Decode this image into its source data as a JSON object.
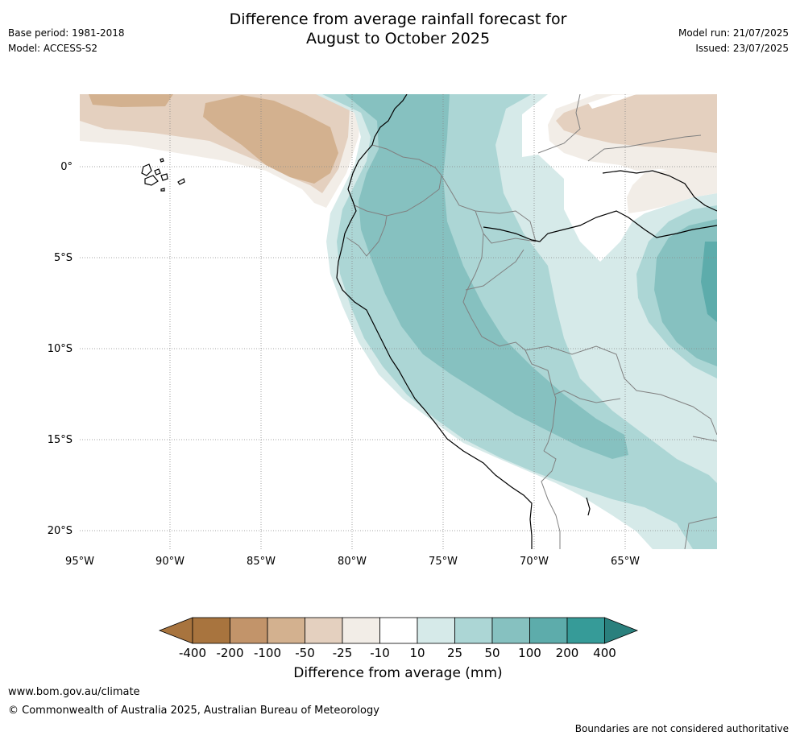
{
  "title_line1": "Difference from average rainfall forecast for",
  "title_line2": "August to October 2025",
  "meta_left": [
    "Base period: 1981-2018",
    "Model: ACCESS-S2"
  ],
  "meta_right": [
    "Model run: 21/07/2025",
    "Issued: 23/07/2025"
  ],
  "map": {
    "lat_labels": [
      "0°",
      "5°S",
      "10°S",
      "15°S",
      "20°S"
    ],
    "lon_labels": [
      "95°W",
      "90°W",
      "85°W",
      "80°W",
      "75°W",
      "70°W",
      "65°W"
    ],
    "colors": {
      "brown_400": "#a8743e",
      "brown_200": "#c2946a",
      "brown_100": "#d3b18f",
      "brown_50": "#e4d0bf",
      "brown_25": "#f2ede7",
      "neutral": "#ffffff",
      "teal_10": "#d6eae9",
      "teal_25": "#acd6d5",
      "teal_50": "#86c1c0",
      "teal_100": "#5dacab",
      "teal_200": "#369b98",
      "teal_400": "#2a807d",
      "coast": "#000000",
      "border": "#808080"
    }
  },
  "colorbar": {
    "ticks": [
      "-400",
      "-200",
      "-100",
      "-50",
      "-25",
      "-10",
      "10",
      "25",
      "50",
      "100",
      "200",
      "400"
    ],
    "label": "Difference from average (mm)"
  },
  "footer": {
    "url": "www.bom.gov.au/climate",
    "copyright": "© Commonwealth of Australia 2025, Australian Bureau of Meteorology",
    "note": "Boundaries are not considered authoritative"
  }
}
